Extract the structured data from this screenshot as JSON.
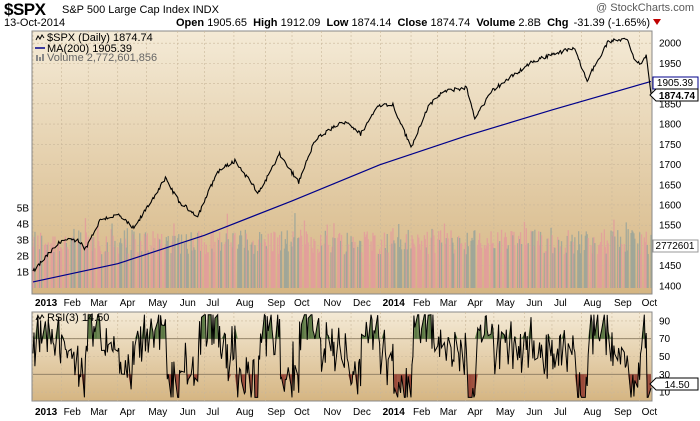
{
  "header": {
    "symbol": "$SPX",
    "subtitle": "S&P 500 Large Cap Index INDX",
    "date": "13-Oct-2014",
    "open_label": "Open",
    "open": "1905.65",
    "high_label": "High",
    "high": "1912.09",
    "low_label": "Low",
    "low": "1874.14",
    "close_label": "Close",
    "close": "1874.74",
    "volume_label": "Volume",
    "volume": "2.8B",
    "chg_label": "Chg",
    "chg": "-31.39 (-1.65%)",
    "watermark": "@ StockCharts.com"
  },
  "legend": {
    "price": "$SPX (Daily) 1874.74",
    "ma": "MA(200) 1905.39",
    "volume": "Volume 2,772,601,856",
    "rsi": "RSI(3) 14.50"
  },
  "price_badges": {
    "ma": "1905.39",
    "close": "1874.74",
    "volume": "2772601",
    "rsi": "14.50"
  },
  "colors": {
    "panel_bg_top": "#f4ead6",
    "panel_bg_bottom": "#d6b784",
    "price_line": "#000000",
    "ma_line": "#00008b",
    "volume_up": "#e39c9c",
    "volume_down": "#9aa59a",
    "rsi_fill_high": "#5d7a45",
    "rsi_fill_low": "#9b4a3a",
    "grid": "#c9b79a"
  },
  "chart_data": [
    {
      "type": "line",
      "title": "$SPX (Daily)",
      "x_labels": [
        "2013",
        "Feb",
        "Mar",
        "Apr",
        "May",
        "Jun",
        "Jul",
        "Aug",
        "Sep",
        "Oct",
        "Nov",
        "Dec",
        "2014",
        "Feb",
        "Mar",
        "Apr",
        "May",
        "Jun",
        "Jul",
        "Aug",
        "Sep",
        "Oct"
      ],
      "y_ticks": [
        1400,
        1450,
        1500,
        1550,
        1600,
        1650,
        1700,
        1750,
        1800,
        1850,
        1900,
        1950,
        2000
      ],
      "ylim": [
        1380,
        2030
      ],
      "volume_ticks": [
        "1B",
        "2B",
        "3B",
        "4B",
        "5B"
      ],
      "series": [
        {
          "name": "$SPX (Daily)",
          "x": [
            "2013-01-02",
            "2013-01-15",
            "2013-02-01",
            "2013-02-19",
            "2013-02-26",
            "2013-03-14",
            "2013-04-02",
            "2013-04-18",
            "2013-05-01",
            "2013-05-21",
            "2013-06-05",
            "2013-06-24",
            "2013-07-15",
            "2013-08-02",
            "2013-08-27",
            "2013-09-18",
            "2013-10-08",
            "2013-10-25",
            "2013-11-15",
            "2013-11-27",
            "2013-12-12",
            "2013-12-31",
            "2014-01-15",
            "2014-02-03",
            "2014-02-20",
            "2014-03-07",
            "2014-04-02",
            "2014-04-11",
            "2014-04-30",
            "2014-06-09",
            "2014-07-01",
            "2014-07-24",
            "2014-08-07",
            "2014-08-29",
            "2014-09-18",
            "2014-09-25",
            "2014-10-01",
            "2014-10-08",
            "2014-10-13"
          ],
          "values": [
            1435,
            1470,
            1513,
            1512,
            1492,
            1565,
            1575,
            1541,
            1591,
            1665,
            1606,
            1573,
            1683,
            1709,
            1630,
            1725,
            1656,
            1760,
            1795,
            1807,
            1775,
            1848,
            1848,
            1742,
            1839,
            1878,
            1891,
            1816,
            1884,
            1952,
            1973,
            1987,
            1910,
            2003,
            2012,
            1966,
            1946,
            1968,
            1874.74
          ]
        },
        {
          "name": "MA(200)",
          "x": [
            "2013-01-02",
            "2013-04-01",
            "2013-07-01",
            "2013-10-01",
            "2014-01-02",
            "2014-04-01",
            "2014-07-01",
            "2014-10-13"
          ],
          "values": [
            1410,
            1455,
            1525,
            1610,
            1700,
            1770,
            1835,
            1905.39
          ]
        },
        {
          "name": "Volume",
          "latest": 2772601856,
          "approx_range_billions": [
            2.0,
            4.5
          ]
        }
      ]
    },
    {
      "type": "line",
      "title": "RSI(3)",
      "x_labels": [
        "2013",
        "Feb",
        "Mar",
        "Apr",
        "May",
        "Jun",
        "Jul",
        "Aug",
        "Sep",
        "Oct",
        "Nov",
        "Dec",
        "2014",
        "Feb",
        "Mar",
        "Apr",
        "May",
        "Jun",
        "Jul",
        "Aug",
        "Sep",
        "Oct"
      ],
      "y_ticks": [
        10,
        30,
        50,
        70,
        90
      ],
      "ylim": [
        0,
        100
      ],
      "overbought": 70,
      "oversold": 30,
      "latest": 14.5
    }
  ]
}
